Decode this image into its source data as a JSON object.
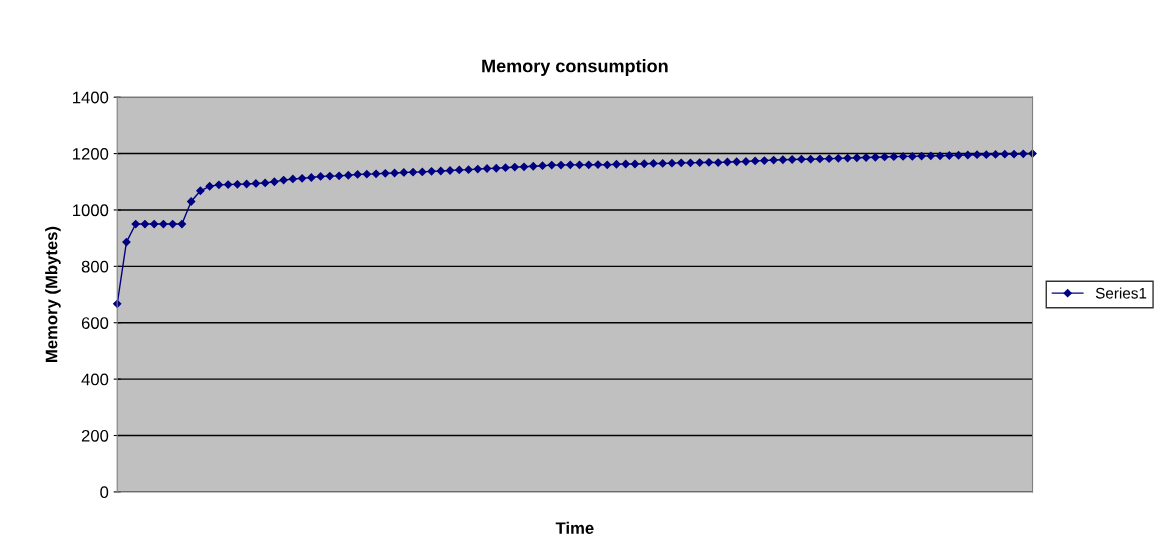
{
  "chart_data": {
    "type": "line",
    "title": "Memory consumption",
    "xlabel": "Time",
    "ylabel": "Memory (Mbytes)",
    "categories": [
      null,
      null,
      null,
      null,
      null,
      null,
      null,
      null,
      null,
      null,
      null,
      null,
      null,
      null,
      null,
      null,
      null,
      null,
      null,
      null,
      null,
      null,
      null,
      null,
      null,
      null,
      null,
      null,
      null,
      null,
      null,
      null,
      null,
      null,
      null,
      null,
      null,
      null,
      null,
      null,
      null,
      null,
      null,
      null,
      null,
      null,
      null,
      null,
      null,
      null,
      null,
      null,
      null,
      null,
      null,
      null,
      null,
      null,
      null,
      null,
      null,
      null,
      null,
      null,
      null,
      null,
      null,
      null,
      null,
      null,
      null,
      null,
      null,
      null,
      null,
      null,
      null,
      null,
      null,
      null,
      null,
      null,
      null,
      null,
      null,
      null,
      null,
      null,
      null,
      null,
      null,
      null,
      null,
      null,
      null,
      null,
      null,
      null,
      null,
      null
    ],
    "series": [
      {
        "name": "Series1",
        "color": "#000080",
        "values": [
          667,
          886,
          950,
          950,
          950,
          950,
          950,
          950,
          1030,
          1068,
          1084,
          1089,
          1090,
          1091,
          1092,
          1094,
          1096,
          1100,
          1106,
          1110,
          1112,
          1115,
          1119,
          1120,
          1121,
          1123,
          1126,
          1127,
          1128,
          1130,
          1131,
          1133,
          1134,
          1135,
          1137,
          1138,
          1140,
          1142,
          1143,
          1145,
          1147,
          1148,
          1150,
          1152,
          1153,
          1155,
          1157,
          1159,
          1159,
          1160,
          1160,
          1160,
          1161,
          1160,
          1162,
          1163,
          1163,
          1164,
          1165,
          1165,
          1166,
          1167,
          1167,
          1168,
          1169,
          1168,
          1170,
          1171,
          1172,
          1174,
          1175,
          1177,
          1178,
          1179,
          1180,
          1180,
          1181,
          1182,
          1183,
          1184,
          1185,
          1186,
          1187,
          1188,
          1189,
          1190,
          1190,
          1191,
          1192,
          1192,
          1193,
          1194,
          1195,
          1196,
          1196,
          1197,
          1198,
          1198,
          1199,
          1200
        ]
      }
    ],
    "ylim": [
      0,
      1400
    ],
    "yticks": [
      0,
      200,
      400,
      600,
      800,
      1000,
      1200,
      1400
    ],
    "grid": "y",
    "legend": "right",
    "marker": "diamond",
    "line_style": "solid"
  }
}
